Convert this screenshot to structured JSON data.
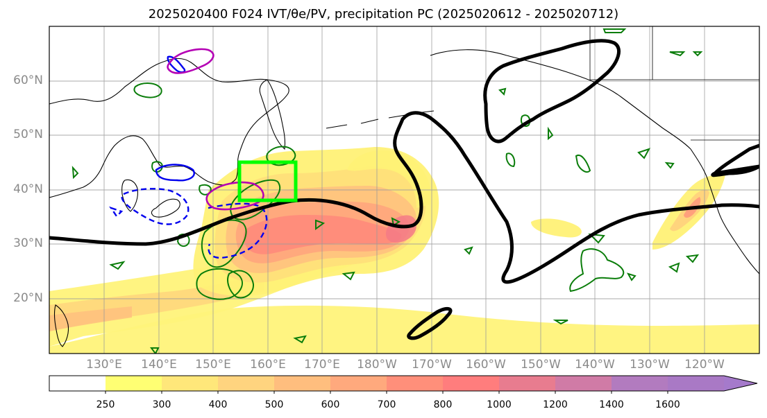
{
  "title": "2025020400 F024 IVT/θe/PV, precipitation PC (2025020612 - 2025020712)",
  "map": {
    "lat_labels": [
      "60°N",
      "50°N",
      "40°N",
      "30°N",
      "20°N"
    ],
    "lon_labels": [
      "130°E",
      "140°E",
      "150°E",
      "160°E",
      "170°E",
      "180°W",
      "170°W",
      "160°W",
      "150°W",
      "140°W",
      "130°W",
      "120°W"
    ],
    "fill_colors": [
      "#fff9a6",
      "#fff176",
      "#ffe079",
      "#ffcc7e",
      "#ffb67d",
      "#ff9d7a",
      "#ff7f7f",
      "#f17586",
      "#df7ea6"
    ],
    "land_outline_color": "#000000",
    "black_contour_color": "#000000",
    "green_contour_color": "#0a7d0a",
    "blue_dashed_color": "#0000ee",
    "magenta_contour_color": "#b400b4",
    "highlight_box_color": "#00ff00"
  },
  "colorbar": {
    "ticks": [
      "250",
      "300",
      "400",
      "500",
      "600",
      "700",
      "800",
      "1000",
      "1200",
      "1400",
      "1600"
    ],
    "colors": [
      "#ffffff",
      "#ffff73",
      "#ffe77a",
      "#ffd47f",
      "#ffbe7e",
      "#ffa97d",
      "#ff8f7a",
      "#ff7d7d",
      "#e87c8f",
      "#d07ba6",
      "#b27bbf",
      "#a979c5",
      "#a57acb"
    ]
  }
}
